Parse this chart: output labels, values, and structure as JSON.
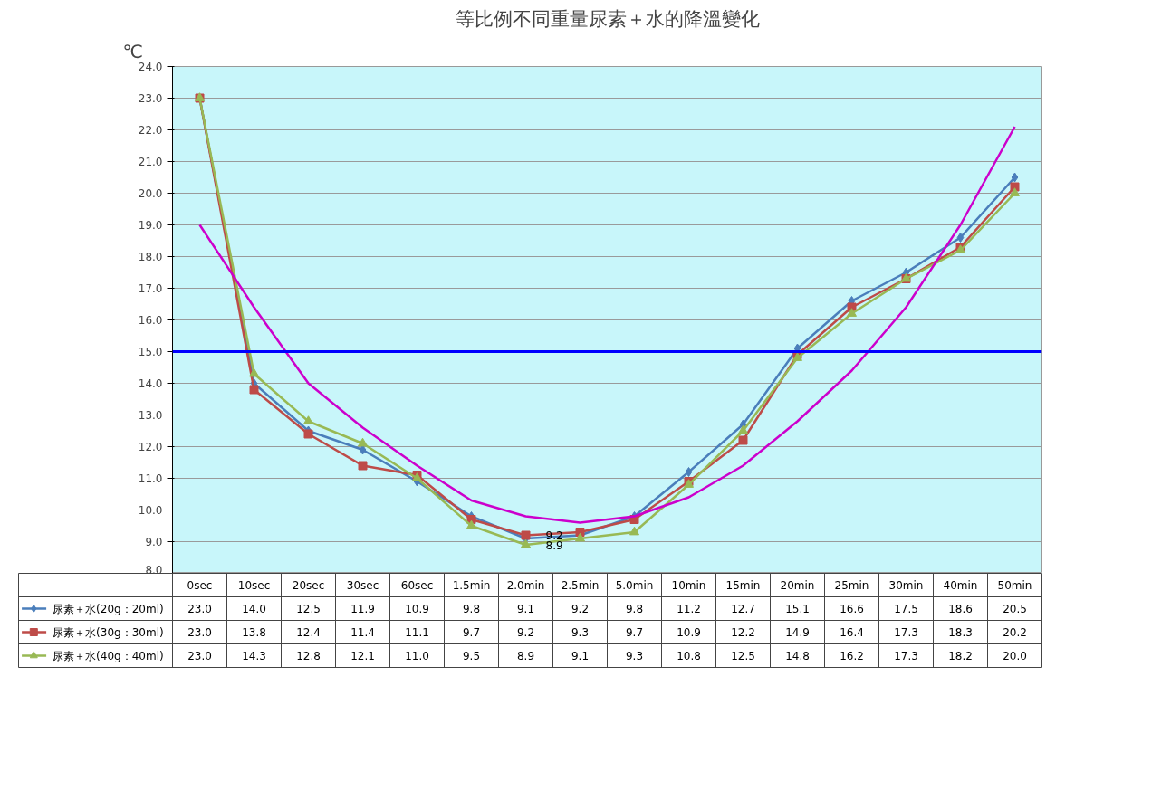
{
  "chart_data": {
    "type": "line",
    "title": "等比例不同重量尿素＋水的降溫變化",
    "ylabel": "℃",
    "categories": [
      "0sec",
      "10sec",
      "20sec",
      "30sec",
      "60sec",
      "1.5min",
      "2.0min",
      "2.5min",
      "5.0min",
      "10min",
      "15min",
      "20min",
      "25min",
      "30min",
      "40min",
      "50min"
    ],
    "series": [
      {
        "name": "尿素＋水(20g：20ml)",
        "color": "#4a7ebb",
        "marker": "diamond",
        "values": [
          23.0,
          14.0,
          12.5,
          11.9,
          10.9,
          9.8,
          9.1,
          9.2,
          9.8,
          11.2,
          12.7,
          15.1,
          16.6,
          17.5,
          18.6,
          20.5
        ],
        "value_labels": [
          "23.0",
          "14.0",
          "12.5",
          "11.9",
          "10.9",
          "9.8",
          "9.1",
          "9.2",
          "9.8",
          "11.2",
          "12.7",
          "15.1",
          "16.6",
          "17.5",
          "18.6",
          "20.5"
        ]
      },
      {
        "name": "尿素＋水(30g：30ml)",
        "color": "#be4b48",
        "marker": "square",
        "values": [
          23.0,
          13.8,
          12.4,
          11.4,
          11.1,
          9.7,
          9.2,
          9.3,
          9.7,
          10.9,
          12.2,
          14.9,
          16.4,
          17.3,
          18.3,
          20.2
        ],
        "value_labels": [
          "23.0",
          "13.8",
          "12.4",
          "11.4",
          "11.1",
          "9.7",
          "9.2",
          "9.3",
          "9.7",
          "10.9",
          "12.2",
          "14.9",
          "16.4",
          "17.3",
          "18.3",
          "20.2"
        ]
      },
      {
        "name": "尿素＋水(40g：40ml)",
        "color": "#98b954",
        "marker": "triangle",
        "values": [
          23.0,
          14.3,
          12.8,
          12.1,
          11.0,
          9.5,
          8.9,
          9.1,
          9.3,
          10.8,
          12.5,
          14.8,
          16.2,
          17.3,
          18.2,
          20.0
        ],
        "value_labels": [
          "23.0",
          "14.3",
          "12.8",
          "12.1",
          "11.0",
          "9.5",
          "8.9",
          "9.1",
          "9.3",
          "10.8",
          "12.5",
          "14.8",
          "16.2",
          "17.3",
          "18.2",
          "20.0"
        ]
      },
      {
        "type": "line",
        "color": "#cc00cc",
        "marker": "none",
        "values": [
          19.0,
          16.4,
          14.0,
          12.6,
          11.4,
          10.3,
          9.8,
          9.6,
          9.8,
          10.4,
          11.4,
          12.8,
          14.4,
          16.4,
          19.0,
          22.1
        ]
      }
    ],
    "ylim": [
      8,
      24
    ],
    "yticks": [
      {
        "value": 8,
        "label": "8.0"
      },
      {
        "value": 9,
        "label": "9.0"
      },
      {
        "value": 10,
        "label": "10.0"
      },
      {
        "value": 11,
        "label": "11.0"
      },
      {
        "value": 12,
        "label": "12.0"
      },
      {
        "value": 13,
        "label": "13.0"
      },
      {
        "value": 14,
        "label": "14.0"
      },
      {
        "value": 15,
        "label": "15.0"
      },
      {
        "value": 16,
        "label": "16.0"
      },
      {
        "value": 17,
        "label": "17.0"
      },
      {
        "value": 18,
        "label": "18.0"
      },
      {
        "value": 19,
        "label": "19.0"
      },
      {
        "value": 20,
        "label": "20.0"
      },
      {
        "value": 21,
        "label": "21.0"
      },
      {
        "value": 22,
        "label": "22.0"
      },
      {
        "value": 23,
        "label": "23.0"
      },
      {
        "value": 24,
        "label": "24.0"
      }
    ],
    "grid": "y",
    "legend": "bottom",
    "ref_lines": [
      {
        "axis": "y",
        "value": 15,
        "color": "#0000ff"
      }
    ],
    "annotations": [
      {
        "text": "9.2",
        "x": "2.0min",
        "y": 9.2
      },
      {
        "text": "8.9",
        "x": "2.0min",
        "y": 8.9
      }
    ]
  }
}
